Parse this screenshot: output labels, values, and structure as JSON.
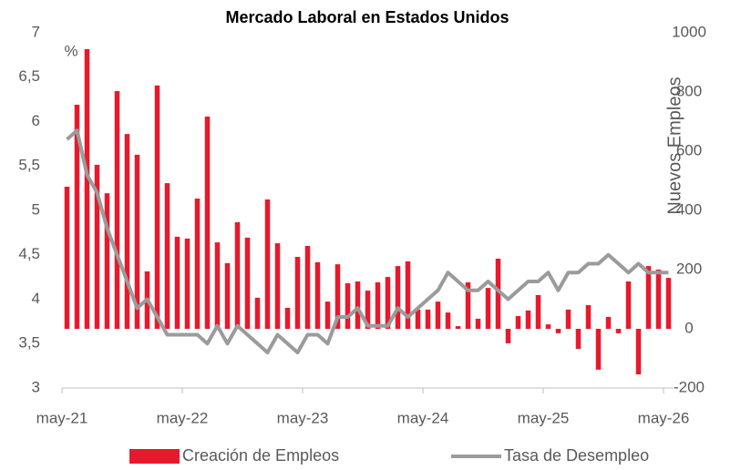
{
  "chart_data": {
    "type": "bar_line",
    "title": "Mercado Laboral en Estados Unidos",
    "ylabel": "%",
    "y2label": "Nuevos Empleos",
    "categories": [
      "may-21",
      null,
      null,
      null,
      null,
      null,
      null,
      null,
      null,
      null,
      null,
      null,
      "may-22",
      null,
      null,
      null,
      null,
      null,
      null,
      null,
      null,
      null,
      null,
      null,
      "may-23",
      null,
      null,
      null,
      null,
      null,
      null,
      null,
      null,
      null,
      null,
      null,
      "may-24",
      null,
      null,
      null,
      null,
      null,
      null,
      null,
      null,
      null,
      null,
      null,
      "may-25",
      null,
      null,
      null,
      null,
      null,
      null,
      null,
      null,
      null,
      null,
      null,
      "may-26"
    ],
    "series": [
      {
        "name": "Creación de Empleos",
        "type": "bar",
        "axis": "y2",
        "color": "#e8192c",
        "values": [
          480,
          757,
          945,
          554,
          458,
          803,
          658,
          588,
          194,
          822,
          492,
          311,
          305,
          440,
          717,
          292,
          222,
          360,
          308,
          105,
          437,
          289,
          71,
          243,
          280,
          225,
          92,
          218,
          154,
          160,
          129,
          157,
          175,
          212,
          228,
          65,
          65,
          92,
          55,
          9,
          157,
          34,
          138,
          237,
          -49,
          43,
          62,
          114,
          15,
          -15,
          65,
          -68,
          80,
          -138,
          40,
          -15,
          160,
          -154,
          212,
          200,
          172
        ]
      },
      {
        "name": "Tasa de Desempleo",
        "type": "line",
        "axis": "y",
        "color": "#9b9b9b",
        "values": [
          5.8,
          5.9,
          5.4,
          5.2,
          4.8,
          4.5,
          4.2,
          3.9,
          4.0,
          3.8,
          3.6,
          3.6,
          3.6,
          3.6,
          3.5,
          3.7,
          3.5,
          3.7,
          3.6,
          3.5,
          3.4,
          3.6,
          3.5,
          3.4,
          3.6,
          3.6,
          3.5,
          3.8,
          3.8,
          3.9,
          3.7,
          3.7,
          3.7,
          3.9,
          3.8,
          3.9,
          4.0,
          4.1,
          4.3,
          4.2,
          4.1,
          4.1,
          4.2,
          4.1,
          4.0,
          4.1,
          4.2,
          4.2,
          4.3,
          4.1,
          4.3,
          4.3,
          4.4,
          4.4,
          4.5,
          4.4,
          4.3,
          4.4,
          4.3,
          4.3,
          4.3
        ]
      }
    ],
    "ylim": [
      3,
      7
    ],
    "yticks": [
      3,
      {
        "value": 3.5,
        "label": "3,5"
      },
      4,
      {
        "value": 4.5,
        "label": "4,5"
      },
      5,
      {
        "value": 5.5,
        "label": "5,5"
      },
      6,
      {
        "value": 6.5,
        "label": "6,5"
      },
      7
    ],
    "y2lim": [
      -200,
      1000
    ],
    "y2ticks": [
      -200,
      0,
      200,
      400,
      600,
      800,
      1000
    ],
    "legend": "bottom"
  }
}
